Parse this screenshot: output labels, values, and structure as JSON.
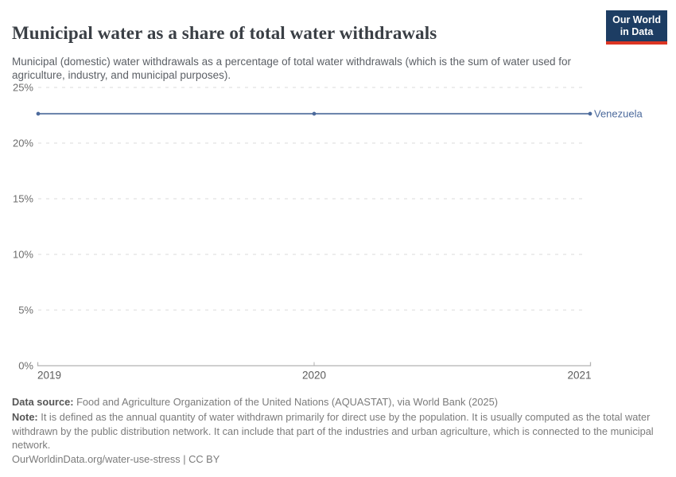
{
  "header": {
    "title": "Municipal water as a share of total water withdrawals",
    "subtitle": "Municipal (domestic) water withdrawals as a percentage of total water withdrawals (which is the sum of water used for agriculture, industry, and municipal purposes).",
    "logo": {
      "line1": "Our World",
      "line2": "in Data",
      "bg_color": "#1d3d63",
      "stripe_color": "#dc3523"
    }
  },
  "chart_data": {
    "type": "line",
    "x": [
      2019,
      2020,
      2021
    ],
    "xtick_labels": [
      "2019",
      "2020",
      "2021"
    ],
    "series": [
      {
        "name": "Venezuela",
        "values": [
          22.64,
          22.64,
          22.64
        ],
        "color": "#4c6a9c",
        "line_color": "#6f87ad"
      }
    ],
    "ylim": [
      0,
      25
    ],
    "yticks": [
      0,
      5,
      10,
      15,
      20,
      25
    ],
    "ytick_labels": [
      "0%",
      "5%",
      "10%",
      "15%",
      "20%",
      "25%"
    ],
    "grid": "horizontal-dashed",
    "legend_position": "end-of-line-label"
  },
  "footer": {
    "data_source_label": "Data source:",
    "data_source": " Food and Agriculture Organization of the United Nations (AQUASTAT), via World Bank (2025)",
    "note_label": "Note:",
    "note": " It is defined as the annual quantity of water withdrawn primarily for direct use by the population. It is usually computed as the total water withdrawn by the public distribution network. It can include that part of the industries and urban agriculture, which is connected to the municipal network.",
    "citation": "OurWorldinData.org/water-use-stress | CC BY"
  }
}
